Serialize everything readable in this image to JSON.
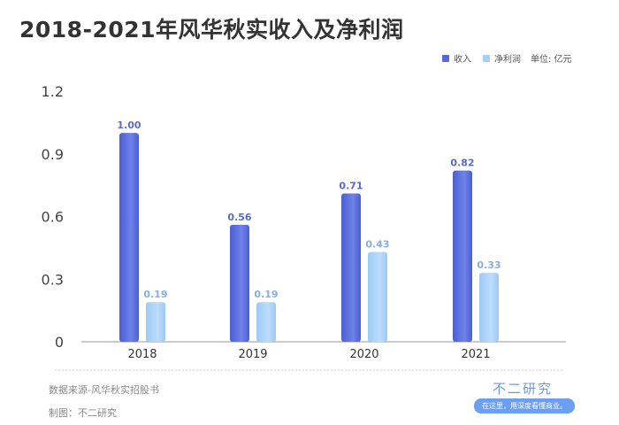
{
  "title": "2018-2021年风华秋实收入及净利润",
  "legend": {
    "revenue": "收入",
    "profit": "净利润",
    "unit": "单位: 亿元"
  },
  "footer": {
    "source": "数据来源-风华秋实招股书",
    "maker": "制图：不二研究",
    "brand": "不二研究",
    "slogan": "在这里，用深度看懂商业。"
  },
  "colors": {
    "revenue": "#5468dc",
    "profit": "#a6d0f8",
    "revenue_label": "#5a6bc8",
    "profit_label": "#86aee0"
  },
  "chart_data": {
    "type": "bar",
    "title": "2018-2021年风华秋实收入及净利润",
    "categories": [
      "2018",
      "2019",
      "2020",
      "2021"
    ],
    "series": [
      {
        "name": "收入",
        "values": [
          1.0,
          0.56,
          0.71,
          0.82
        ]
      },
      {
        "name": "净利润",
        "values": [
          0.19,
          0.19,
          0.43,
          0.33
        ]
      }
    ],
    "yticks": [
      "0",
      "0.3",
      "0.6",
      "0.9",
      "1.2"
    ],
    "ylim": [
      0,
      1.2
    ],
    "unit": "亿元",
    "grid": false,
    "legend": "top-right"
  }
}
